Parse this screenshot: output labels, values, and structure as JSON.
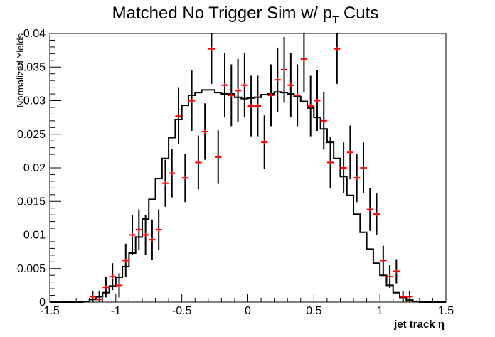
{
  "chart_data": {
    "type": "line",
    "title": "Matched No Trigger Sim w/ p",
    "title_subscript": "T",
    "title_suffix": " Cuts",
    "xlabel": "jet track η",
    "ylabel": "Normalized Yields",
    "xlim": [
      -1.5,
      1.5
    ],
    "ylim": [
      0,
      0.04
    ],
    "xticks": [
      "-1.5",
      "-1",
      "-0.5",
      "0",
      "0.5",
      "1",
      "1.5"
    ],
    "yticks": [
      "0",
      "0.005",
      "0.01",
      "0.015",
      "0.02",
      "0.025",
      "0.03",
      "0.035",
      "0.04"
    ],
    "grid": false,
    "series": [
      {
        "kind": "histogram",
        "color": "#000000",
        "bin_edges": [
          -1.5,
          -1.45,
          -1.4,
          -1.35,
          -1.3,
          -1.25,
          -1.2,
          -1.15,
          -1.1,
          -1.05,
          -1.0,
          -0.95,
          -0.9,
          -0.85,
          -0.8,
          -0.75,
          -0.7,
          -0.65,
          -0.6,
          -0.55,
          -0.5,
          -0.45,
          -0.4,
          -0.35,
          -0.3,
          -0.25,
          -0.2,
          -0.15,
          -0.1,
          -0.05,
          0.0,
          0.05,
          0.1,
          0.15,
          0.2,
          0.25,
          0.3,
          0.35,
          0.4,
          0.45,
          0.5,
          0.55,
          0.6,
          0.65,
          0.7,
          0.75,
          0.8,
          0.85,
          0.9,
          0.95,
          1.0,
          1.05,
          1.1,
          1.15,
          1.2,
          1.25,
          1.3,
          1.35,
          1.4,
          1.45,
          1.5
        ],
        "values": [
          0,
          0,
          0,
          0,
          0,
          0.0001,
          0.0004,
          0.0008,
          0.0014,
          0.0024,
          0.0037,
          0.0053,
          0.0073,
          0.0097,
          0.0124,
          0.0153,
          0.0184,
          0.0214,
          0.0245,
          0.0272,
          0.0293,
          0.0308,
          0.0312,
          0.0316,
          0.0316,
          0.0312,
          0.031,
          0.031,
          0.0305,
          0.0303,
          0.0304,
          0.0305,
          0.0309,
          0.031,
          0.0313,
          0.0312,
          0.031,
          0.0306,
          0.0299,
          0.0289,
          0.0275,
          0.0258,
          0.0238,
          0.0214,
          0.0187,
          0.0159,
          0.0131,
          0.0104,
          0.0079,
          0.0058,
          0.004,
          0.0025,
          0.0014,
          0.0007,
          0.0003,
          0.0001,
          0,
          0,
          0,
          0
        ]
      },
      {
        "kind": "points_with_errors",
        "color": "#ff0000",
        "x": [
          -1.175,
          -1.125,
          -1.075,
          -1.025,
          -0.975,
          -0.925,
          -0.875,
          -0.825,
          -0.775,
          -0.725,
          -0.675,
          -0.625,
          -0.575,
          -0.525,
          -0.475,
          -0.425,
          -0.375,
          -0.325,
          -0.275,
          -0.225,
          -0.175,
          -0.125,
          -0.075,
          -0.025,
          0.025,
          0.075,
          0.125,
          0.175,
          0.225,
          0.275,
          0.325,
          0.375,
          0.425,
          0.475,
          0.525,
          0.575,
          0.625,
          0.675,
          0.725,
          0.775,
          0.825,
          0.875,
          0.925,
          0.975,
          1.025,
          1.075,
          1.125,
          1.175,
          1.225
        ],
        "y": [
          0.0008,
          0.0004,
          0.0022,
          0.0038,
          0.0025,
          0.0062,
          0.01,
          0.0108,
          0.01,
          0.0093,
          0.0108,
          0.0177,
          0.0192,
          0.0277,
          0.0185,
          0.03,
          0.0208,
          0.0254,
          0.0377,
          0.0216,
          0.0323,
          0.0308,
          0.0315,
          0.0323,
          0.0292,
          0.0292,
          0.0238,
          0.0308,
          0.0331,
          0.0346,
          0.0323,
          0.0308,
          0.0362,
          0.0292,
          0.03,
          0.027,
          0.0208,
          0.0377,
          0.02,
          0.0223,
          0.0185,
          0.02,
          0.0138,
          0.0131,
          0.0062,
          0.0038,
          0.0046,
          0.0008,
          0.0008
        ],
        "yerr": [
          0.0008,
          0.0012,
          0.0015,
          0.002,
          0.0018,
          0.0025,
          0.003,
          0.003,
          0.003,
          0.003,
          0.003,
          0.0035,
          0.0036,
          0.0042,
          0.0036,
          0.0045,
          0.004,
          0.0042,
          0.0052,
          0.004,
          0.0048,
          0.0046,
          0.0047,
          0.0048,
          0.0045,
          0.0045,
          0.004,
          0.0046,
          0.0048,
          0.0049,
          0.0048,
          0.0046,
          0.005,
          0.0045,
          0.0045,
          0.0043,
          0.0038,
          0.0052,
          0.0038,
          0.004,
          0.0036,
          0.0038,
          0.0032,
          0.0031,
          0.0022,
          0.0017,
          0.0018,
          0.0008,
          0.0008
        ]
      }
    ]
  }
}
